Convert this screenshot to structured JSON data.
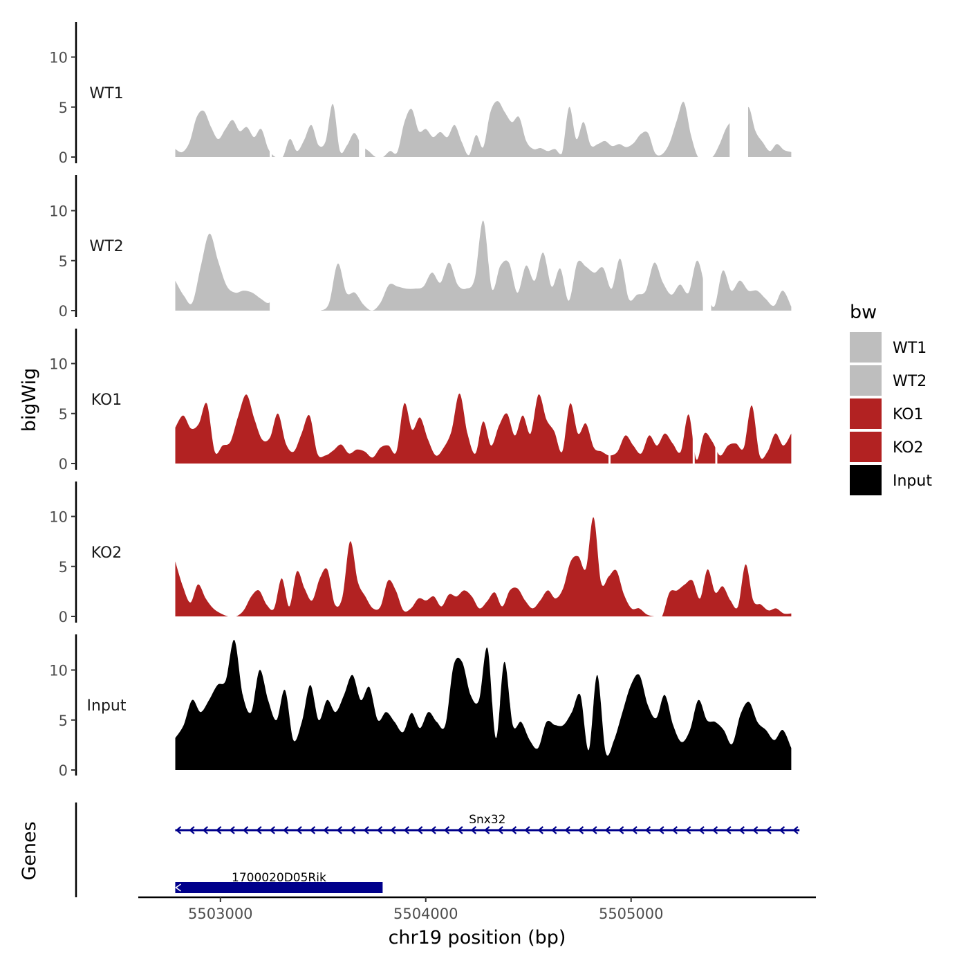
{
  "chart_data": {
    "type": "area",
    "xlabel": "chr19 position (bp)",
    "ylabel": "bigWig",
    "genes_label": "Genes",
    "xlim": [
      5502600,
      5505900
    ],
    "x_ticks": [
      5503000,
      5504000,
      5505000
    ],
    "x_tick_labels": [
      "5503000",
      "5504000",
      "5505000"
    ],
    "ylim": [
      0,
      13.5
    ],
    "y_ticks": [
      0,
      5,
      10
    ],
    "y_tick_labels": [
      "0",
      "5",
      "10"
    ],
    "x_start": 5502780,
    "x_end": 5505780,
    "legend": {
      "title": "bw",
      "position": "right",
      "entries": [
        {
          "label": "WT1",
          "color": "#BEBEBE"
        },
        {
          "label": "WT2",
          "color": "#BEBEBE"
        },
        {
          "label": "KO1",
          "color": "#B22222"
        },
        {
          "label": "KO2",
          "color": "#B22222"
        },
        {
          "label": "Input",
          "color": "#000000"
        }
      ]
    },
    "series": [
      {
        "name": "WT1",
        "color": "#BEBEBE",
        "values": [
          0.8,
          0.5,
          1.5,
          4.0,
          4.6,
          3.0,
          1.8,
          2.8,
          3.7,
          2.6,
          3.0,
          2.0,
          2.8,
          0.8,
          0,
          0,
          1.8,
          0.6,
          1.7,
          3.2,
          1.2,
          1.6,
          5.3,
          0.6,
          1.2,
          2.4,
          1.2,
          0.6,
          0,
          0,
          0.6,
          0.5,
          3.5,
          4.8,
          2.6,
          2.8,
          2.0,
          2.5,
          2.0,
          3.2,
          1.5,
          0.2,
          2.2,
          1.0,
          4.5,
          5.6,
          4.5,
          3.5,
          4.0,
          1.6,
          0.8,
          0.9,
          0.6,
          0.8,
          0.4,
          5.0,
          1.8,
          3.5,
          1.2,
          1.3,
          1.6,
          1.1,
          1.3,
          1.0,
          1.4,
          2.3,
          2.4,
          0.4,
          0.3,
          1.4,
          3.6,
          5.5,
          2.2,
          0,
          0,
          0,
          1.3,
          3.0,
          3.6,
          2.6,
          5.0,
          2.6,
          1.5,
          0.6,
          1.3,
          0.7,
          0.5
        ],
        "breaks": [
          {
            "from": 5503240,
            "to": 5503250
          },
          {
            "from": 5503675,
            "to": 5503705
          },
          {
            "from": 5505480,
            "to": 5505570
          }
        ]
      },
      {
        "name": "WT2",
        "color": "#BEBEBE",
        "values": [
          3.0,
          1.5,
          0.8,
          4.5,
          7.7,
          5.0,
          2.5,
          1.8,
          2.0,
          1.8,
          1.2,
          0.8,
          2.2,
          0.6,
          0,
          0,
          0,
          0,
          0.8,
          4.7,
          1.8,
          1.8,
          0.6,
          0,
          0.8,
          2.6,
          2.4,
          2.2,
          2.2,
          2.4,
          3.8,
          2.8,
          4.8,
          2.6,
          2.2,
          3.2,
          9.0,
          2.2,
          4.5,
          4.8,
          1.8,
          4.5,
          3.0,
          5.8,
          2.4,
          4.2,
          1.0,
          4.8,
          4.4,
          3.8,
          4.3,
          2.2,
          5.2,
          1.2,
          1.6,
          2.0,
          4.8,
          2.8,
          1.6,
          2.6,
          1.8,
          5.0,
          2.2,
          0.4,
          4.0,
          2.0,
          3.0,
          2.0,
          2.0,
          1.2,
          0.5,
          2.0,
          0.4
        ],
        "breaks": [
          {
            "from": 5503240,
            "to": 5503440
          },
          {
            "from": 5505350,
            "to": 5505390
          }
        ]
      },
      {
        "name": "KO1",
        "color": "#B22222",
        "values": [
          3.6,
          4.8,
          3.5,
          4.0,
          6.0,
          1.2,
          1.8,
          2.2,
          4.8,
          6.9,
          4.5,
          2.4,
          2.6,
          5.0,
          2.0,
          1.2,
          3.0,
          4.8,
          1.0,
          0.8,
          1.3,
          1.9,
          1.0,
          1.4,
          1.2,
          0.6,
          1.6,
          1.8,
          1.2,
          6.0,
          3.4,
          4.6,
          2.4,
          0.8,
          1.6,
          3.3,
          7.0,
          3.0,
          1.0,
          4.2,
          1.8,
          3.8,
          5.0,
          2.8,
          4.8,
          3.0,
          6.9,
          4.4,
          3.2,
          1.2,
          6.0,
          3.0,
          4.0,
          1.6,
          1.2,
          0.8,
          1.2,
          2.8,
          1.8,
          1.0,
          2.8,
          1.8,
          3.0,
          2.0,
          1.2,
          4.9,
          0.4,
          3.0,
          2.2,
          0.8,
          1.8,
          2.0,
          1.6,
          5.8,
          0.8,
          1.2,
          3.0,
          1.8,
          3.0
        ],
        "breaks": [
          {
            "from": 5504890,
            "to": 5504900
          },
          {
            "from": 5505300,
            "to": 5505310
          },
          {
            "from": 5505410,
            "to": 5505420
          }
        ]
      },
      {
        "name": "KO2",
        "color": "#B22222",
        "values": [
          5.5,
          3.0,
          1.4,
          3.2,
          1.8,
          0.8,
          0.3,
          0,
          0,
          0.6,
          2.0,
          2.6,
          1.2,
          0.8,
          3.8,
          1.0,
          4.5,
          2.8,
          1.6,
          3.8,
          4.7,
          1.2,
          2.0,
          7.5,
          3.5,
          2.0,
          0.8,
          1.0,
          3.6,
          2.6,
          0.6,
          0.8,
          1.8,
          1.6,
          2.0,
          1.0,
          2.2,
          2.0,
          2.6,
          2.0,
          0.8,
          1.5,
          2.4,
          1.0,
          2.6,
          2.8,
          1.6,
          0.8,
          1.6,
          2.6,
          1.8,
          2.8,
          5.5,
          6.0,
          4.8,
          9.9,
          3.4,
          4.0,
          4.6,
          2.2,
          0.8,
          0.8,
          0.2,
          0,
          0,
          2.4,
          2.6,
          3.2,
          3.6,
          1.8,
          4.7,
          2.4,
          3.0,
          1.6,
          1.0,
          5.2,
          1.6,
          1.2,
          0.6,
          0.8,
          0.3,
          0.3
        ],
        "breaks": []
      },
      {
        "name": "Input",
        "color": "#000000",
        "values": [
          3.2,
          4.5,
          7.0,
          5.8,
          7.0,
          8.5,
          9.0,
          13.0,
          7.5,
          5.8,
          10.0,
          7.0,
          5.0,
          8.0,
          3.0,
          4.8,
          8.5,
          5.0,
          7.0,
          5.8,
          7.5,
          9.5,
          7.0,
          8.3,
          5.0,
          5.8,
          4.8,
          3.8,
          5.7,
          4.2,
          5.8,
          4.8,
          4.5,
          10.5,
          10.8,
          7.5,
          7.0,
          12.2,
          3.2,
          10.8,
          4.5,
          4.8,
          3.0,
          2.2,
          4.8,
          4.5,
          4.5,
          5.8,
          7.5,
          2.0,
          9.5,
          1.8,
          3.0,
          5.8,
          8.5,
          9.5,
          6.5,
          5.2,
          7.5,
          4.5,
          2.8,
          4.0,
          7.0,
          5.0,
          4.8,
          4.0,
          2.6,
          5.6,
          6.8,
          4.8,
          4.0,
          3.0,
          4.0,
          2.2
        ],
        "breaks": []
      }
    ],
    "genes": [
      {
        "name": "1700020D05Rik",
        "start": 5502780,
        "end": 5503790,
        "strand": "-",
        "kind": "block",
        "color": "#00008B"
      },
      {
        "name": "Snx32",
        "start": 5502780,
        "end": 5505820,
        "strand": "-",
        "kind": "line",
        "color": "#00008B"
      }
    ]
  }
}
